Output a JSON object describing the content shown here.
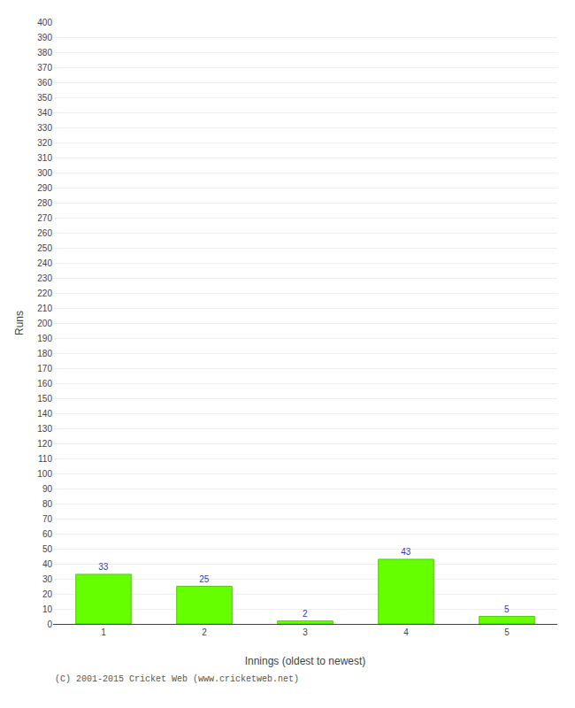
{
  "chart_data": {
    "type": "bar",
    "x": [
      1,
      2,
      3,
      4,
      5
    ],
    "values": [
      33,
      25,
      2,
      43,
      5
    ],
    "color": "#66ff00",
    "xlabel": "Innings (oldest to newest)",
    "ylabel": "Runs",
    "xlim": [
      0.5,
      5.5
    ],
    "xticks": [
      1,
      2,
      3,
      4,
      5
    ],
    "ylim": [
      0,
      400
    ],
    "yticks": [
      0,
      10,
      20,
      30,
      40,
      50,
      60,
      70,
      80,
      90,
      100,
      110,
      120,
      130,
      140,
      150,
      160,
      170,
      180,
      190,
      200,
      210,
      220,
      230,
      240,
      250,
      260,
      270,
      280,
      290,
      300,
      310,
      320,
      330,
      340,
      350,
      360,
      370,
      380,
      390,
      400
    ],
    "grid": true,
    "data_labels": true,
    "annotations": [
      "(C) 2001-2015 Cricket Web (www.cricketweb.net)"
    ]
  }
}
